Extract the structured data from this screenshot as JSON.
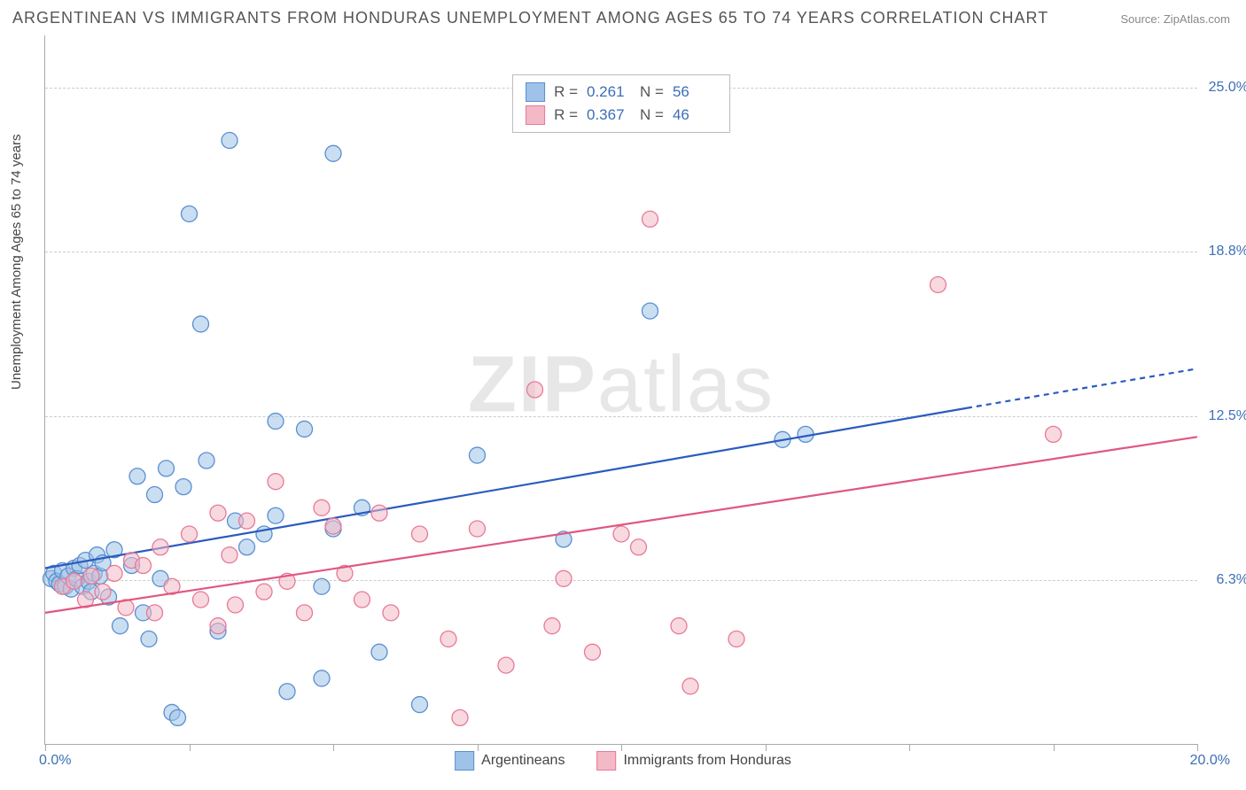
{
  "title": "ARGENTINEAN VS IMMIGRANTS FROM HONDURAS UNEMPLOYMENT AMONG AGES 65 TO 74 YEARS CORRELATION CHART",
  "source_prefix": "Source: ",
  "source_name": "ZipAtlas.com",
  "y_axis_label": "Unemployment Among Ages 65 to 74 years",
  "watermark": "ZIPatlas",
  "chart": {
    "type": "scatter",
    "xlim": [
      0,
      20
    ],
    "ylim": [
      0,
      27
    ],
    "x_ticks": [
      0,
      2.5,
      5,
      7.5,
      10,
      12.5,
      15,
      17.5,
      20
    ],
    "y_gridlines": [
      6.25,
      12.5,
      18.75,
      25
    ],
    "y_tick_labels": [
      "6.3%",
      "12.5%",
      "18.8%",
      "25.0%"
    ],
    "x_origin_label": "0.0%",
    "x_max_label": "20.0%",
    "grid_color": "#cccccc",
    "background_color": "#ffffff",
    "marker_radius": 9,
    "marker_opacity": 0.55,
    "marker_stroke_width": 1.3,
    "trend_line_width": 2.2,
    "series": [
      {
        "key": "argentineans",
        "label": "Argentineans",
        "fill": "#9fc2e8",
        "stroke": "#5a8fd0",
        "line_color": "#2a5bbf",
        "r_label": "R =",
        "r_value": "0.261",
        "n_label": "N =",
        "n_value": "56",
        "trend": {
          "x1": 0,
          "y1": 6.7,
          "x2": 16,
          "y2": 12.8,
          "dash_to_x": 20,
          "dash_to_y": 14.3
        },
        "points": [
          [
            0.1,
            6.3
          ],
          [
            0.15,
            6.5
          ],
          [
            0.2,
            6.2
          ],
          [
            0.25,
            6.1
          ],
          [
            0.3,
            6.6
          ],
          [
            0.35,
            6.0
          ],
          [
            0.4,
            6.4
          ],
          [
            0.45,
            5.9
          ],
          [
            0.5,
            6.7
          ],
          [
            0.55,
            6.3
          ],
          [
            0.6,
            6.8
          ],
          [
            0.65,
            6.0
          ],
          [
            0.7,
            7.0
          ],
          [
            0.75,
            6.2
          ],
          [
            0.8,
            5.8
          ],
          [
            0.85,
            6.5
          ],
          [
            0.9,
            7.2
          ],
          [
            0.95,
            6.4
          ],
          [
            1.0,
            6.9
          ],
          [
            1.1,
            5.6
          ],
          [
            1.2,
            7.4
          ],
          [
            1.3,
            4.5
          ],
          [
            1.5,
            6.8
          ],
          [
            1.6,
            10.2
          ],
          [
            1.7,
            5.0
          ],
          [
            1.8,
            4.0
          ],
          [
            1.9,
            9.5
          ],
          [
            2.0,
            6.3
          ],
          [
            2.1,
            10.5
          ],
          [
            2.2,
            1.2
          ],
          [
            2.3,
            1.0
          ],
          [
            2.4,
            9.8
          ],
          [
            2.5,
            20.2
          ],
          [
            2.7,
            16.0
          ],
          [
            2.8,
            10.8
          ],
          [
            3.0,
            4.3
          ],
          [
            3.2,
            23.0
          ],
          [
            3.3,
            8.5
          ],
          [
            3.5,
            7.5
          ],
          [
            3.8,
            8.0
          ],
          [
            4.0,
            12.3
          ],
          [
            4.0,
            8.7
          ],
          [
            4.2,
            2.0
          ],
          [
            4.5,
            12.0
          ],
          [
            4.8,
            6.0
          ],
          [
            4.8,
            2.5
          ],
          [
            5.0,
            22.5
          ],
          [
            5.0,
            8.2
          ],
          [
            5.5,
            9.0
          ],
          [
            5.8,
            3.5
          ],
          [
            6.5,
            1.5
          ],
          [
            7.5,
            11.0
          ],
          [
            9.0,
            7.8
          ],
          [
            10.5,
            16.5
          ],
          [
            12.8,
            11.6
          ],
          [
            13.2,
            11.8
          ]
        ]
      },
      {
        "key": "honduras",
        "label": "Immigrants from Honduras",
        "fill": "#f3b9c6",
        "stroke": "#e77a97",
        "line_color": "#e0577f",
        "r_label": "R =",
        "r_value": "0.367",
        "n_label": "N =",
        "n_value": "46",
        "trend": {
          "x1": 0,
          "y1": 5.0,
          "x2": 20,
          "y2": 11.7,
          "dash_to_x": 20,
          "dash_to_y": 11.7
        },
        "points": [
          [
            0.3,
            6.0
          ],
          [
            0.5,
            6.2
          ],
          [
            0.7,
            5.5
          ],
          [
            0.8,
            6.4
          ],
          [
            1.0,
            5.8
          ],
          [
            1.2,
            6.5
          ],
          [
            1.4,
            5.2
          ],
          [
            1.5,
            7.0
          ],
          [
            1.7,
            6.8
          ],
          [
            1.9,
            5.0
          ],
          [
            2.0,
            7.5
          ],
          [
            2.2,
            6.0
          ],
          [
            2.5,
            8.0
          ],
          [
            2.7,
            5.5
          ],
          [
            3.0,
            4.5
          ],
          [
            3.0,
            8.8
          ],
          [
            3.2,
            7.2
          ],
          [
            3.3,
            5.3
          ],
          [
            3.5,
            8.5
          ],
          [
            3.8,
            5.8
          ],
          [
            4.0,
            10.0
          ],
          [
            4.2,
            6.2
          ],
          [
            4.5,
            5.0
          ],
          [
            4.8,
            9.0
          ],
          [
            5.0,
            8.3
          ],
          [
            5.2,
            6.5
          ],
          [
            5.5,
            5.5
          ],
          [
            5.8,
            8.8
          ],
          [
            6.0,
            5.0
          ],
          [
            6.5,
            8.0
          ],
          [
            7.0,
            4.0
          ],
          [
            7.2,
            1.0
          ],
          [
            7.5,
            8.2
          ],
          [
            8.0,
            3.0
          ],
          [
            8.5,
            13.5
          ],
          [
            8.8,
            4.5
          ],
          [
            9.5,
            3.5
          ],
          [
            10.0,
            8.0
          ],
          [
            10.5,
            20.0
          ],
          [
            11.0,
            4.5
          ],
          [
            11.2,
            2.2
          ],
          [
            12.0,
            4.0
          ],
          [
            15.5,
            17.5
          ],
          [
            17.5,
            11.8
          ],
          [
            9.0,
            6.3
          ],
          [
            10.3,
            7.5
          ]
        ]
      }
    ]
  },
  "legend_bottom": {
    "items": [
      {
        "series": "argentineans"
      },
      {
        "series": "honduras"
      }
    ]
  }
}
